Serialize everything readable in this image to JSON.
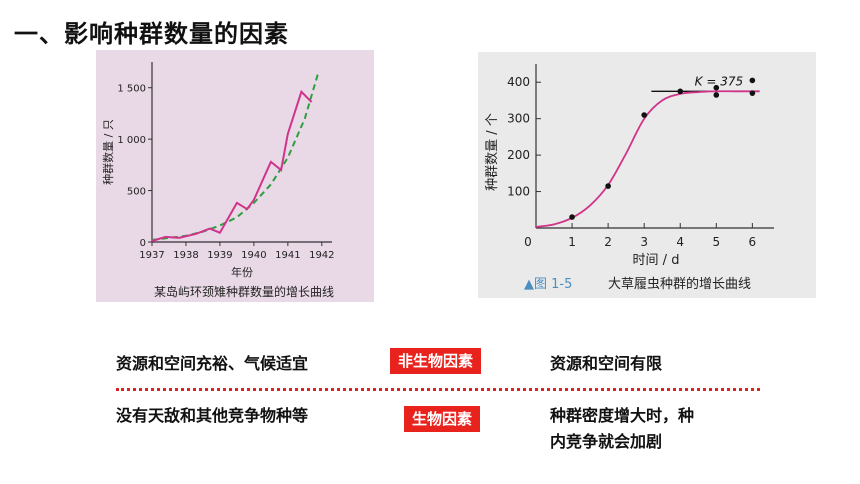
{
  "heading": "一、影响种群数量的因素",
  "chart_data": [
    {
      "type": "line",
      "caption": "某岛屿环颈雉种群数量的增长曲线",
      "xlabel": "年份",
      "ylabel": "种群数量 / 只",
      "x_ticks": [
        "1937",
        "1938",
        "1939",
        "1940",
        "1941",
        "1942"
      ],
      "y_ticks": [
        0,
        500,
        1000,
        1500
      ],
      "ylim": [
        0,
        1750
      ],
      "series": [
        {
          "x": [
            1937.0,
            1937.4,
            1937.8,
            1938.3,
            1938.7,
            1939.0,
            1939.5,
            1939.8,
            1940.0,
            1940.5,
            1940.8,
            1941.0,
            1941.4,
            1941.7
          ],
          "values": [
            10,
            50,
            40,
            80,
            130,
            90,
            380,
            320,
            410,
            780,
            700,
            1050,
            1460,
            1360
          ],
          "style": "solid",
          "color": "#d0348a"
        },
        {
          "x": [
            1937.0,
            1937.5,
            1938.0,
            1938.5,
            1939.0,
            1939.5,
            1940.0,
            1940.5,
            1941.0,
            1941.5,
            1941.9
          ],
          "values": [
            20,
            40,
            60,
            100,
            160,
            240,
            380,
            560,
            820,
            1200,
            1650
          ],
          "style": "dashed",
          "color": "#2e9e3e"
        }
      ],
      "background": "#e9d9e6"
    },
    {
      "type": "line",
      "caption_prefix": "▲图 1-5",
      "caption": "大草履虫种群的增长曲线",
      "xlabel": "时间 / d",
      "ylabel": "种群数量 / 个",
      "x_ticks": [
        0,
        1,
        2,
        3,
        4,
        5,
        6
      ],
      "y_ticks": [
        100,
        200,
        300,
        400
      ],
      "xlim": [
        0,
        6.6
      ],
      "ylim": [
        0,
        450
      ],
      "annotation": "K = 375",
      "k_value": 375,
      "series": [
        {
          "x": [
            0,
            0.5,
            1.0,
            1.5,
            2.0,
            2.5,
            3.0,
            3.5,
            4.0,
            4.5,
            5.0,
            5.5,
            6.0,
            6.2
          ],
          "values": [
            3,
            10,
            28,
            62,
            118,
            205,
            300,
            350,
            368,
            373,
            375,
            375,
            375,
            375
          ],
          "style": "curve",
          "color": "#d0348a"
        }
      ],
      "points": {
        "x": [
          1,
          2,
          3,
          4,
          5,
          5,
          6,
          6
        ],
        "y": [
          30,
          115,
          310,
          375,
          385,
          365,
          405,
          370
        ]
      },
      "background": "#eaeaea"
    }
  ],
  "factors": {
    "row1_left": "资源和空间充裕、气候适宜",
    "row1_badge": "非生物因素",
    "row1_right": "资源和空间有限",
    "row2_left": "没有天敌和其他竞争物种等",
    "row2_badge": "生物因素",
    "row2_right_line1": "种群密度增大时，种",
    "row2_right_line2": "内竞争就会加剧"
  }
}
